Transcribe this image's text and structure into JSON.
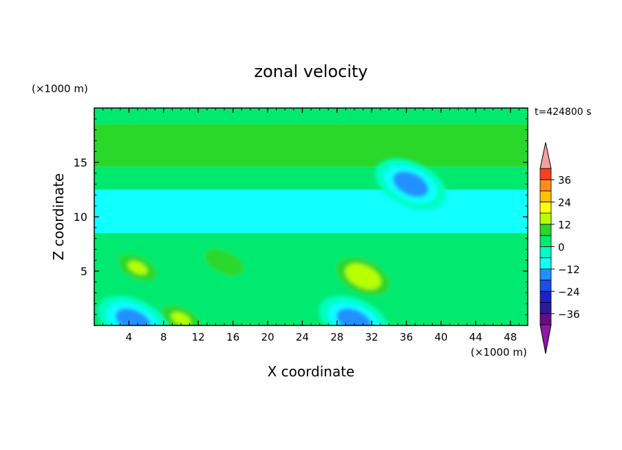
{
  "chart_data": {
    "type": "heatmap",
    "title": "zonal velocity",
    "xlabel": "X coordinate",
    "ylabel": "Z coordinate",
    "x_unit": "(×1000 m)",
    "y_unit": "(×1000 m)",
    "time_label": "t=424800 s",
    "xlim": [
      0,
      50
    ],
    "ylim": [
      0,
      20
    ],
    "x_ticks": [
      4,
      8,
      12,
      16,
      20,
      24,
      28,
      32,
      36,
      40,
      44,
      48
    ],
    "y_ticks": [
      5,
      10,
      15
    ],
    "colorbar": {
      "levels": [
        -42,
        -36,
        -30,
        -24,
        -18,
        -12,
        -6,
        0,
        6,
        12,
        18,
        24,
        30,
        36,
        42
      ],
      "labeled_ticks": [
        36,
        24,
        12,
        0,
        -12,
        -24,
        -36
      ],
      "tick_labels": [
        "36",
        "24",
        "12",
        "0",
        "−12",
        "−24",
        "−36"
      ],
      "colors": [
        "#6a0a8a",
        "#2a1a9a",
        "#1f1fc8",
        "#1a4fe8",
        "#2090ff",
        "#10ffff",
        "#00ffc0",
        "#00ea70",
        "#2ad82a",
        "#b8ff00",
        "#ffff00",
        "#ffc000",
        "#ff8c1a",
        "#ff4020"
      ],
      "under_color": "#8c1aa6",
      "over_color": "#f4a0a0"
    },
    "field_description_points": {
      "bands": [
        {
          "z": [
            18.5,
            20
          ],
          "value": 2
        },
        {
          "z": [
            14.6,
            18.5
          ],
          "value": 9
        },
        {
          "z": [
            12.5,
            14.6
          ],
          "value": 2
        },
        {
          "z": [
            8.5,
            12.5
          ],
          "value": -7
        },
        {
          "z": [
            0,
            8.5
          ],
          "value": 0
        }
      ],
      "blobs": [
        {
          "x": 5,
          "z": 5.3,
          "value": 13
        },
        {
          "x": 15,
          "z": 5.8,
          "value": 11
        },
        {
          "x": 31,
          "z": 4.5,
          "value": 16
        },
        {
          "x": 10,
          "z": 0.6,
          "value": 12
        },
        {
          "x": 36.5,
          "z": 13,
          "value": -18
        },
        {
          "x": 4.5,
          "z": 0.4,
          "value": -18
        },
        {
          "x": 30,
          "z": 0.4,
          "value": -18
        }
      ]
    }
  }
}
